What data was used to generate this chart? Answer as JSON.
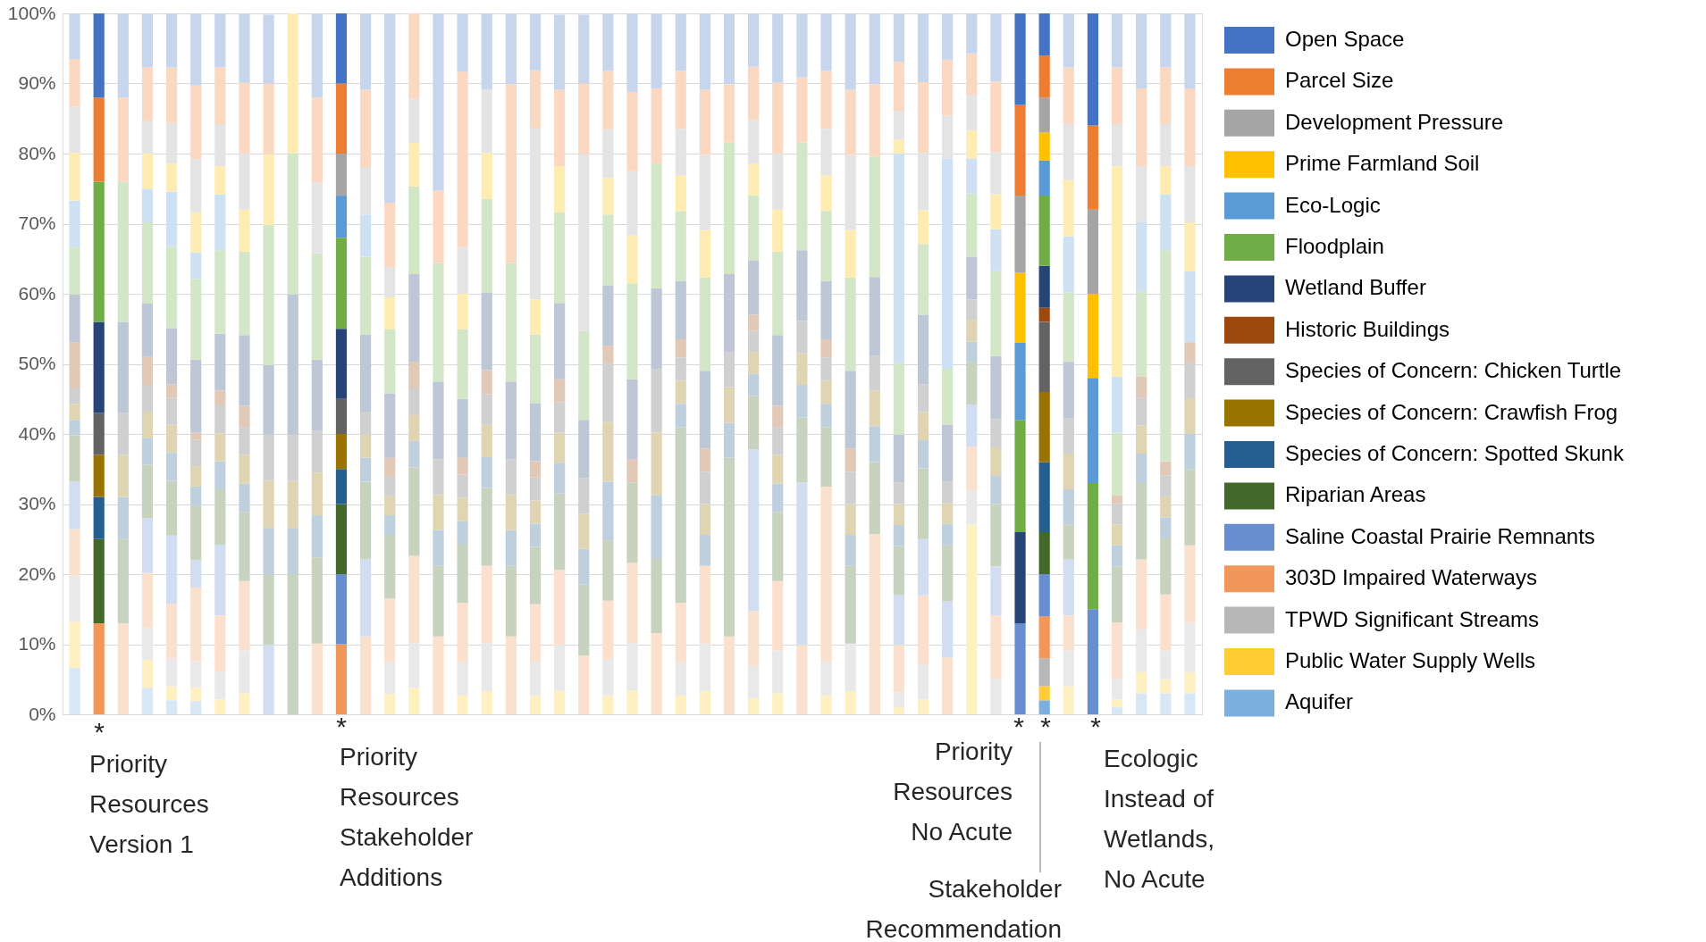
{
  "chart_data": {
    "type": "bar",
    "stacked": true,
    "legend": "right",
    "grid": "y",
    "categories": [
      null,
      null,
      null,
      null,
      null,
      null,
      null,
      null,
      null,
      null,
      null,
      null,
      null,
      null,
      null,
      null,
      null,
      null,
      null,
      null,
      null,
      null,
      null,
      null,
      null,
      null,
      null,
      null,
      null,
      null,
      null,
      null,
      null,
      null,
      null,
      null,
      null,
      null,
      null,
      null,
      null,
      null,
      null,
      null,
      null,
      null,
      null
    ],
    "ylim": [
      0,
      100
    ],
    "yticks": [
      {
        "value": 0,
        "label": "0%"
      },
      {
        "value": 10,
        "label": "10%"
      },
      {
        "value": 20,
        "label": "20%"
      },
      {
        "value": 30,
        "label": "30%"
      },
      {
        "value": 40,
        "label": "40%"
      },
      {
        "value": 50,
        "label": "50%"
      },
      {
        "value": 60,
        "label": "60%"
      },
      {
        "value": 70,
        "label": "70%"
      },
      {
        "value": 80,
        "label": "80%"
      },
      {
        "value": 90,
        "label": "90%"
      },
      {
        "value": 100,
        "label": "100%"
      }
    ],
    "annotations": [
      "*",
      "Priority Resources Version 1",
      "*",
      "Priority Resources Stakeholder Additions",
      "*",
      "Priority Resources No Acute",
      "*",
      "Stakeholder Recommendation",
      "*",
      "Ecologic Instead of Wetlands, No Acute"
    ],
    "series": [
      {
        "name": "Aquifer",
        "color": "#7cafdd",
        "values": [
          6.6,
          0,
          0,
          3.8,
          2,
          1.9,
          0,
          0,
          0,
          0,
          0,
          0,
          0,
          0,
          0,
          0,
          0,
          0,
          0,
          0,
          0,
          0,
          0,
          0,
          0,
          0,
          0,
          0,
          0,
          0,
          0,
          0,
          0,
          0,
          0,
          0,
          0,
          0,
          0,
          0,
          2,
          0,
          0,
          1,
          3,
          3,
          3
        ],
        "colors": [
          "#d8e7f5",
          "#7cafdd",
          "#d8e7f5",
          "#d8e7f5",
          "#d8e7f5",
          "#d8e7f5",
          "#d8e7f5",
          "#d8e7f5",
          "#d8e7f5",
          "#d8e7f5",
          "#d8e7f5",
          "#7cafdd",
          "#d8e7f5",
          "#d8e7f5",
          "#d8e7f5",
          "#d8e7f5",
          "#d8e7f5",
          "#d8e7f5",
          "#d8e7f5",
          "#d8e7f5",
          "#d8e7f5",
          "#d8e7f5",
          "#d8e7f5",
          "#d8e7f5",
          "#d8e7f5",
          "#d8e7f5",
          "#d8e7f5",
          "#d8e7f5",
          "#d8e7f5",
          "#d8e7f5",
          "#d8e7f5",
          "#d8e7f5",
          "#d8e7f5",
          "#d8e7f5",
          "#d8e7f5",
          "#d8e7f5",
          "#d8e7f5",
          "#d8e7f5",
          "#d8e7f5",
          "#7cafdd",
          "#7cafdd",
          "#d8e7f5",
          "#7cafdd",
          "#d8e7f5",
          "#d8e7f5",
          "#d8e7f5",
          "#d8e7f5"
        ]
      },
      {
        "name": "Public Water Supply Wells",
        "color": "#ffcd33",
        "values": [
          6.6,
          0,
          0,
          4,
          2,
          1.9,
          2.1,
          3,
          0,
          0,
          0,
          0,
          0,
          2.9,
          3.8,
          0,
          2.7,
          3.3,
          0,
          2.7,
          3.3,
          0,
          2.7,
          3.4,
          0,
          2.7,
          3.3,
          0,
          2.3,
          3,
          0,
          2.7,
          3.3,
          0,
          1,
          2.1,
          0,
          27.1,
          0,
          0,
          2,
          4,
          0,
          1.1,
          3,
          2,
          3
        ],
        "colors": [
          "#fff0c2",
          "#ffcd33",
          "#fff0c2",
          "#fff0c2",
          "#fff0c2",
          "#fff0c2",
          "#fff0c2",
          "#fff0c2",
          "#fff0c2",
          "#fff0c2",
          "#fff0c2",
          "#ffcd33",
          "#fff0c2",
          "#fff0c2",
          "#fff0c2",
          "#fff0c2",
          "#fff0c2",
          "#fff0c2",
          "#fff0c2",
          "#fff0c2",
          "#fff0c2",
          "#fff0c2",
          "#fff0c2",
          "#fff0c2",
          "#fff0c2",
          "#fff0c2",
          "#fff0c2",
          "#fff0c2",
          "#fff0c2",
          "#fff0c2",
          "#fff0c2",
          "#fff0c2",
          "#fff0c2",
          "#fff0c2",
          "#fff0c2",
          "#fff0c2",
          "#fff0c2",
          "#fff0c2",
          "#fff0c2",
          "#ffcd33",
          "#ffcd33",
          "#fff0c2",
          "#ffcd33",
          "#fff0c2",
          "#fff0c2",
          "#fff0c2",
          "#fff0c2"
        ]
      },
      {
        "name": "TPWD Significant Streams",
        "color": "#b7b7b7",
        "values": [
          6.6,
          0,
          0,
          4.6,
          4,
          3.8,
          4,
          6.1,
          0,
          0,
          0,
          0,
          0,
          4.6,
          6.3,
          0,
          4.8,
          6.8,
          0,
          4.8,
          6.6,
          0,
          5.1,
          6.8,
          0,
          4.8,
          6.8,
          0,
          4.6,
          6.1,
          0,
          4.8,
          6.8,
          0,
          2.1,
          5,
          0,
          5,
          5.1,
          0,
          4,
          5.1,
          0,
          3,
          6.1,
          4.1,
          7.1
        ],
        "colors": [
          "#e9e9e9",
          "#b7b7b7",
          "#e9e9e9",
          "#e9e9e9",
          "#e9e9e9",
          "#e9e9e9",
          "#e9e9e9",
          "#e9e9e9",
          "#e9e9e9",
          "#e9e9e9",
          "#e9e9e9",
          "#b7b7b7",
          "#e9e9e9",
          "#e9e9e9",
          "#e9e9e9",
          "#e9e9e9",
          "#e9e9e9",
          "#e9e9e9",
          "#e9e9e9",
          "#e9e9e9",
          "#e9e9e9",
          "#e9e9e9",
          "#e9e9e9",
          "#e9e9e9",
          "#e9e9e9",
          "#e9e9e9",
          "#e9e9e9",
          "#e9e9e9",
          "#e9e9e9",
          "#e9e9e9",
          "#e9e9e9",
          "#e9e9e9",
          "#e9e9e9",
          "#e9e9e9",
          "#e9e9e9",
          "#e9e9e9",
          "#e9e9e9",
          "#e9e9e9",
          "#e9e9e9",
          "#b7b7b7",
          "#b7b7b7",
          "#e9e9e9",
          "#b7b7b7",
          "#e9e9e9",
          "#e9e9e9",
          "#e9e9e9",
          "#e9e9e9"
        ]
      },
      {
        "name": "303D Impaired Waterways",
        "color": "#f1975a",
        "values": [
          6.6,
          13,
          13,
          7.8,
          7.8,
          10.5,
          8,
          9.9,
          0,
          0,
          10.1,
          10,
          11.1,
          9,
          12.5,
          11.1,
          8.4,
          11.1,
          11.1,
          8.2,
          10.7,
          8.4,
          8.4,
          11.4,
          11.6,
          8.4,
          11.1,
          11.1,
          7.8,
          9.9,
          9.9,
          25,
          0,
          25.7,
          6.8,
          9.9,
          8.1,
          6.1,
          9,
          0,
          6,
          5,
          0,
          8,
          10,
          8,
          11
        ],
        "colors": [
          "#fbe0ce",
          "#f1975a",
          "#fbe0ce",
          "#fbe0ce",
          "#fbe0ce",
          "#fbe0ce",
          "#fbe0ce",
          "#fbe0ce",
          "#fbe0ce",
          "#fbe0ce",
          "#fbe0ce",
          "#f1975a",
          "#fbe0ce",
          "#fbe0ce",
          "#fbe0ce",
          "#fbe0ce",
          "#fbe0ce",
          "#fbe0ce",
          "#fbe0ce",
          "#fbe0ce",
          "#fbe0ce",
          "#fbe0ce",
          "#fbe0ce",
          "#fbe0ce",
          "#fbe0ce",
          "#fbe0ce",
          "#fbe0ce",
          "#fbe0ce",
          "#fbe0ce",
          "#fbe0ce",
          "#fbe0ce",
          "#fbe0ce",
          "#fbe0ce",
          "#fbe0ce",
          "#fbe0ce",
          "#fbe0ce",
          "#fbe0ce",
          "#fbe0ce",
          "#fbe0ce",
          "#f1975a",
          "#f1975a",
          "#fbe0ce",
          "#f1975a",
          "#fbe0ce",
          "#fbe0ce",
          "#fbe0ce",
          "#fbe0ce"
        ]
      },
      {
        "name": "Saline Coastal Prairie Remnants",
        "color": "#698ed0",
        "values": [
          6.8,
          0,
          0,
          7.8,
          9.7,
          3.9,
          10.1,
          0,
          9.9,
          0,
          0,
          10,
          11,
          0,
          0,
          0,
          0,
          0,
          0,
          0,
          0,
          0,
          0,
          0,
          0,
          0,
          0,
          0,
          23.1,
          0,
          23.2,
          0,
          0,
          0,
          7.1,
          8,
          8,
          6,
          7,
          13,
          6,
          8,
          15,
          0,
          0,
          0,
          0
        ],
        "colors": [
          "#d2ddf1",
          "#698ed0",
          "#d2ddf1",
          "#d2ddf1",
          "#d2ddf1",
          "#d2ddf1",
          "#d2ddf1",
          "#d2ddf1",
          "#d2ddf1",
          "#d2ddf1",
          "#d2ddf1",
          "#698ed0",
          "#d2ddf1",
          "#d2ddf1",
          "#d2ddf1",
          "#d2ddf1",
          "#d2ddf1",
          "#d2ddf1",
          "#d2ddf1",
          "#d2ddf1",
          "#d2ddf1",
          "#d2ddf1",
          "#d2ddf1",
          "#d2ddf1",
          "#d2ddf1",
          "#d2ddf1",
          "#d2ddf1",
          "#d2ddf1",
          "#d2ddf1",
          "#d2ddf1",
          "#d2ddf1",
          "#d2ddf1",
          "#d2ddf1",
          "#d2ddf1",
          "#d2ddf1",
          "#d2ddf1",
          "#d2ddf1",
          "#d2ddf1",
          "#d2ddf1",
          "#698ed0",
          "#698ed0",
          "#d2ddf1",
          "#698ed0",
          "#d2ddf1",
          "#d2ddf1",
          "#d2ddf1",
          "#d2ddf1"
        ]
      },
      {
        "name": "Riparian Areas",
        "color": "#43682b",
        "values": [
          6.6,
          12,
          12,
          7.6,
          7.8,
          7.7,
          7.9,
          9.9,
          10.1,
          20,
          12.3,
          10,
          11.1,
          9.1,
          12.6,
          10.1,
          8.3,
          11.1,
          10.1,
          8.2,
          10.9,
          10.1,
          8.6,
          11.5,
          10.7,
          25.1,
          0,
          25.5,
          7.6,
          9.9,
          9.3,
          8.5,
          11.1,
          10.3,
          7,
          10.1,
          8,
          6.1,
          8.9,
          0,
          6,
          5,
          0,
          8,
          10.9,
          8,
          10.9
        ],
        "colors": [
          "#c7d2bf",
          "#43682b",
          "#c7d2bf",
          "#c7d2bf",
          "#c7d2bf",
          "#c7d2bf",
          "#c7d2bf",
          "#c7d2bf",
          "#c7d2bf",
          "#c7d2bf",
          "#c7d2bf",
          "#43682b",
          "#c7d2bf",
          "#c7d2bf",
          "#c7d2bf",
          "#c7d2bf",
          "#c7d2bf",
          "#c7d2bf",
          "#c7d2bf",
          "#c7d2bf",
          "#c7d2bf",
          "#c7d2bf",
          "#c7d2bf",
          "#c7d2bf",
          "#c7d2bf",
          "#c7d2bf",
          "#c7d2bf",
          "#c7d2bf",
          "#c7d2bf",
          "#c7d2bf",
          "#c7d2bf",
          "#c7d2bf",
          "#c7d2bf",
          "#c7d2bf",
          "#c7d2bf",
          "#c7d2bf",
          "#c7d2bf",
          "#c7d2bf",
          "#c7d2bf",
          "#43682b",
          "#43682b",
          "#c7d2bf",
          "#43682b",
          "#c7d2bf",
          "#c7d2bf",
          "#c7d2bf",
          "#c7d2bf"
        ]
      },
      {
        "name": "Species of Concern: Spotted Skunk",
        "color": "#255e91",
        "values": [
          2.2,
          6,
          6,
          3.8,
          4,
          2.8,
          4,
          4,
          6.6,
          6.6,
          6,
          5,
          3.4,
          2.8,
          3.8,
          5.1,
          3.4,
          4.4,
          5.1,
          3.3,
          4.4,
          5.1,
          8.4,
          0,
          9,
          3.3,
          4.4,
          5,
          3.2,
          4,
          4.6,
          3.3,
          4.4,
          5.1,
          3,
          4,
          3.1,
          2.9,
          4,
          0,
          10,
          5,
          0,
          3,
          4.2,
          3,
          5
        ],
        "colors": [
          "#becfde",
          "#255e91",
          "#becfde",
          "#becfde",
          "#becfde",
          "#becfde",
          "#becfde",
          "#becfde",
          "#becfde",
          "#becfde",
          "#becfde",
          "#255e91",
          "#becfde",
          "#becfde",
          "#becfde",
          "#becfde",
          "#becfde",
          "#becfde",
          "#becfde",
          "#becfde",
          "#becfde",
          "#becfde",
          "#becfde",
          "#becfde",
          "#becfde",
          "#becfde",
          "#becfde",
          "#becfde",
          "#becfde",
          "#becfde",
          "#becfde",
          "#becfde",
          "#becfde",
          "#becfde",
          "#becfde",
          "#becfde",
          "#becfde",
          "#becfde",
          "#becfde",
          "#255e91",
          "#255e91",
          "#becfde",
          "#255e91",
          "#becfde",
          "#becfde",
          "#becfde",
          "#becfde"
        ]
      },
      {
        "name": "Species of Concern: Crawfish Frog",
        "color": "#997300",
        "values": [
          2.3,
          6,
          6,
          3.8,
          4,
          2.9,
          4,
          4.1,
          6.7,
          6.7,
          6.1,
          5,
          3.3,
          2.7,
          3.7,
          5,
          3.3,
          4.6,
          5,
          3.3,
          4.3,
          5,
          8.5,
          0,
          8.9,
          3.3,
          4.4,
          5.1,
          3.1,
          4.1,
          4.5,
          3.3,
          4.4,
          5.1,
          3,
          4,
          2.9,
          3,
          4.1,
          0,
          10,
          5.1,
          0,
          3,
          4,
          3,
          5.1
        ],
        "colors": [
          "#e0d5b2",
          "#997300",
          "#e0d5b2",
          "#e0d5b2",
          "#e0d5b2",
          "#e0d5b2",
          "#e0d5b2",
          "#e0d5b2",
          "#e0d5b2",
          "#e0d5b2",
          "#e0d5b2",
          "#997300",
          "#e0d5b2",
          "#e0d5b2",
          "#e0d5b2",
          "#e0d5b2",
          "#e0d5b2",
          "#e0d5b2",
          "#e0d5b2",
          "#e0d5b2",
          "#e0d5b2",
          "#e0d5b2",
          "#e0d5b2",
          "#e0d5b2",
          "#e0d5b2",
          "#e0d5b2",
          "#e0d5b2",
          "#e0d5b2",
          "#e0d5b2",
          "#e0d5b2",
          "#e0d5b2",
          "#e0d5b2",
          "#e0d5b2",
          "#e0d5b2",
          "#e0d5b2",
          "#e0d5b2",
          "#e0d5b2",
          "#e0d5b2",
          "#e0d5b2",
          "#997300",
          "#997300",
          "#e0d5b2",
          "#997300",
          "#e0d5b2",
          "#e0d5b2",
          "#e0d5b2",
          "#e0d5b2"
        ]
      },
      {
        "name": "Species of Concern: Chicken Turtle",
        "color": "#636363",
        "values": [
          2.2,
          6,
          6,
          3.8,
          3.9,
          3.8,
          4.1,
          4,
          6.6,
          6.6,
          6,
          5,
          3.3,
          2.8,
          3.8,
          5.1,
          3.3,
          4.4,
          5.1,
          3.3,
          4.3,
          5.1,
          8.4,
          0,
          9,
          3.3,
          4.6,
          5,
          3,
          4,
          4.6,
          3.3,
          4.6,
          5,
          3.1,
          4,
          3.1,
          3,
          4,
          0,
          10,
          5,
          0,
          3,
          4,
          3,
          5.1
        ],
        "colors": [
          "#d0d0d0",
          "#636363",
          "#d0d0d0",
          "#d0d0d0",
          "#d0d0d0",
          "#d0d0d0",
          "#d0d0d0",
          "#d0d0d0",
          "#d0d0d0",
          "#d0d0d0",
          "#d0d0d0",
          "#636363",
          "#d0d0d0",
          "#d0d0d0",
          "#d0d0d0",
          "#d0d0d0",
          "#d0d0d0",
          "#d0d0d0",
          "#d0d0d0",
          "#d0d0d0",
          "#d0d0d0",
          "#d0d0d0",
          "#d0d0d0",
          "#d0d0d0",
          "#d0d0d0",
          "#d0d0d0",
          "#d0d0d0",
          "#d0d0d0",
          "#d0d0d0",
          "#d0d0d0",
          "#d0d0d0",
          "#d0d0d0",
          "#d0d0d0",
          "#d0d0d0",
          "#d0d0d0",
          "#d0d0d0",
          "#d0d0d0",
          "#d0d0d0",
          "#d0d0d0",
          "#636363",
          "#636363",
          "#d0d0d0",
          "#636363",
          "#d0d0d0",
          "#d0d0d0",
          "#d0d0d0",
          "#d0d0d0"
        ]
      },
      {
        "name": "Historic Buildings",
        "color": "#9e480e",
        "values": [
          6.6,
          0,
          0,
          4,
          1.9,
          1,
          2,
          3,
          0,
          0,
          0,
          0,
          0,
          2.7,
          3.8,
          0,
          2.4,
          3.4,
          0,
          2.3,
          3.3,
          0,
          2.5,
          3.3,
          0,
          2.6,
          3.3,
          0,
          2.3,
          3,
          0,
          2.6,
          3.3,
          0,
          0,
          0,
          0,
          0,
          0,
          0,
          2,
          0,
          0,
          1.1,
          3,
          2,
          2.9
        ],
        "colors": [
          "#e2c8b7",
          "#9e480e",
          "#e2c8b7",
          "#e2c8b7",
          "#e2c8b7",
          "#e2c8b7",
          "#e2c8b7",
          "#e2c8b7",
          "#e2c8b7",
          "#e2c8b7",
          "#e2c8b7",
          "#9e480e",
          "#e2c8b7",
          "#e2c8b7",
          "#e2c8b7",
          "#e2c8b7",
          "#e2c8b7",
          "#e2c8b7",
          "#e2c8b7",
          "#e2c8b7",
          "#e2c8b7",
          "#e2c8b7",
          "#e2c8b7",
          "#e2c8b7",
          "#e2c8b7",
          "#e2c8b7",
          "#e2c8b7",
          "#e2c8b7",
          "#e2c8b7",
          "#e2c8b7",
          "#e2c8b7",
          "#e2c8b7",
          "#e2c8b7",
          "#e2c8b7",
          "#e2c8b7",
          "#e2c8b7",
          "#e2c8b7",
          "#e2c8b7",
          "#e2c8b7",
          "#9e480e",
          "#9e480e",
          "#e2c8b7",
          "#9e480e",
          "#e2c8b7",
          "#e2c8b7",
          "#e2c8b7",
          "#e2c8b7"
        ]
      },
      {
        "name": "Wetland Buffer",
        "color": "#264478",
        "values": [
          6.8,
          13,
          13,
          7.6,
          8,
          10.4,
          8.1,
          10.1,
          9.9,
          20,
          10.1,
          10,
          11,
          9.2,
          12.5,
          11.1,
          8.4,
          11.1,
          11.1,
          8.3,
          10.9,
          8.3,
          8.6,
          11.4,
          11.6,
          8.3,
          11.1,
          11.1,
          7.8,
          10.1,
          10.1,
          8.3,
          11.1,
          11.2,
          6.8,
          9.9,
          8.1,
          6.1,
          9,
          13,
          6,
          8.1,
          0,
          0,
          0,
          0,
          0
        ],
        "colors": [
          "#bec7d6",
          "#264478",
          "#bec7d6",
          "#bec7d6",
          "#bec7d6",
          "#bec7d6",
          "#bec7d6",
          "#bec7d6",
          "#bec7d6",
          "#bec7d6",
          "#bec7d6",
          "#264478",
          "#bec7d6",
          "#bec7d6",
          "#bec7d6",
          "#bec7d6",
          "#bec7d6",
          "#bec7d6",
          "#bec7d6",
          "#bec7d6",
          "#bec7d6",
          "#bec7d6",
          "#bec7d6",
          "#bec7d6",
          "#bec7d6",
          "#bec7d6",
          "#bec7d6",
          "#bec7d6",
          "#bec7d6",
          "#bec7d6",
          "#bec7d6",
          "#bec7d6",
          "#bec7d6",
          "#bec7d6",
          "#bec7d6",
          "#bec7d6",
          "#bec7d6",
          "#bec7d6",
          "#bec7d6",
          "#264478",
          "#264478",
          "#bec7d6",
          "#264478",
          "#bec7d6",
          "#bec7d6",
          "#bec7d6",
          "#bec7d6"
        ]
      },
      {
        "name": "Floodplain",
        "color": "#70ad47",
        "values": [
          6.7,
          20,
          20,
          11.6,
          11.7,
          11.5,
          11.9,
          11.9,
          20,
          20.2,
          15.2,
          13,
          11.1,
          9.1,
          12.5,
          16.9,
          9.9,
          13.3,
          16.9,
          9.8,
          12.9,
          12.7,
          10.1,
          13.7,
          17.8,
          10,
          13.3,
          18.8,
          9.2,
          11.9,
          15.4,
          10,
          13.3,
          17.2,
          10.2,
          10.1,
          8,
          9,
          12.1,
          16,
          10,
          9.9,
          18,
          9,
          12.1,
          30.1,
          0
        ],
        "colors": [
          "#d4e6c8",
          "#70ad47",
          "#d4e6c8",
          "#d4e6c8",
          "#d4e6c8",
          "#d4e6c8",
          "#d4e6c8",
          "#d4e6c8",
          "#d4e6c8",
          "#d4e6c8",
          "#d4e6c8",
          "#70ad47",
          "#d4e6c8",
          "#d4e6c8",
          "#d4e6c8",
          "#d4e6c8",
          "#d4e6c8",
          "#d4e6c8",
          "#d4e6c8",
          "#d4e6c8",
          "#d4e6c8",
          "#d4e6c8",
          "#d4e6c8",
          "#d4e6c8",
          "#d4e6c8",
          "#d4e6c8",
          "#d4e6c8",
          "#d4e6c8",
          "#d4e6c8",
          "#d4e6c8",
          "#d4e6c8",
          "#d4e6c8",
          "#d4e6c8",
          "#d4e6c8",
          "#d4e6c8",
          "#d4e6c8",
          "#d4e6c8",
          "#d4e6c8",
          "#d4e6c8",
          "#70ad47",
          "#70ad47",
          "#d4e6c8",
          "#70ad47",
          "#d4e6c8",
          "#d4e6c8",
          "#d4e6c8",
          "#d4e6c8"
        ]
      },
      {
        "name": "Eco-Logic",
        "color": "#5b9bd5",
        "values": [
          6.7,
          0,
          0,
          4.8,
          7.8,
          3.8,
          8,
          0,
          0,
          0,
          0,
          6,
          6,
          0,
          0,
          0,
          0,
          0,
          0,
          0,
          0,
          0,
          0,
          0,
          0,
          0,
          0,
          0,
          0,
          0,
          0,
          0,
          0,
          0,
          29.9,
          0,
          30,
          5,
          6,
          11,
          5,
          8,
          15,
          8,
          9.9,
          8,
          10.1
        ],
        "colors": [
          "#cee1f2",
          "#5b9bd5",
          "#cee1f2",
          "#cee1f2",
          "#cee1f2",
          "#cee1f2",
          "#cee1f2",
          "#cee1f2",
          "#cee1f2",
          "#cee1f2",
          "#cee1f2",
          "#5b9bd5",
          "#cee1f2",
          "#cee1f2",
          "#cee1f2",
          "#cee1f2",
          "#cee1f2",
          "#cee1f2",
          "#cee1f2",
          "#cee1f2",
          "#cee1f2",
          "#cee1f2",
          "#cee1f2",
          "#cee1f2",
          "#cee1f2",
          "#cee1f2",
          "#cee1f2",
          "#cee1f2",
          "#cee1f2",
          "#cee1f2",
          "#cee1f2",
          "#cee1f2",
          "#cee1f2",
          "#cee1f2",
          "#cee1f2",
          "#cee1f2",
          "#cee1f2",
          "#cee1f2",
          "#cee1f2",
          "#5b9bd5",
          "#5b9bd5",
          "#cee1f2",
          "#5b9bd5",
          "#cee1f2",
          "#cee1f2",
          "#cee1f2",
          "#cee1f2"
        ]
      },
      {
        "name": "Prime Farmland Soil",
        "color": "#ffc000",
        "values": [
          6.8,
          0,
          0,
          5,
          4,
          5.7,
          4,
          6,
          10.1,
          19.9,
          0,
          0,
          0,
          4.6,
          6.2,
          0,
          5.1,
          6.6,
          0,
          5,
          6.6,
          0,
          5.2,
          6.8,
          0,
          5.1,
          6.8,
          0,
          4.6,
          6,
          0,
          5.1,
          6.8,
          0,
          2,
          4.8,
          0,
          4,
          5,
          10,
          4,
          8,
          12,
          30,
          0,
          4,
          7
        ],
        "colors": [
          "#ffecb2",
          "#ffc000",
          "#ffecb2",
          "#ffecb2",
          "#ffecb2",
          "#ffecb2",
          "#ffecb2",
          "#ffecb2",
          "#ffecb2",
          "#ffecb2",
          "#ffecb2",
          "#ffc000",
          "#ffecb2",
          "#ffecb2",
          "#ffecb2",
          "#ffecb2",
          "#ffecb2",
          "#ffecb2",
          "#ffecb2",
          "#ffecb2",
          "#ffecb2",
          "#ffecb2",
          "#ffecb2",
          "#ffecb2",
          "#ffecb2",
          "#ffecb2",
          "#ffecb2",
          "#ffecb2",
          "#ffecb2",
          "#ffecb2",
          "#ffecb2",
          "#ffecb2",
          "#ffecb2",
          "#ffecb2",
          "#ffecb2",
          "#ffecb2",
          "#ffecb2",
          "#ffecb2",
          "#ffecb2",
          "#ffc000",
          "#ffc000",
          "#ffecb2",
          "#ffc000",
          "#ffecb2",
          "#ffecb2",
          "#ffecb2",
          "#ffecb2"
        ]
      },
      {
        "name": "Development Pressure",
        "color": "#a5a5a5",
        "values": [
          6.6,
          0,
          0,
          4.7,
          5.8,
          7.6,
          6,
          8,
          0,
          0,
          10.1,
          6,
          6.8,
          4.3,
          6.3,
          0,
          6.7,
          9,
          0,
          24.5,
          0,
          25.2,
          6.9,
          9.2,
          0,
          6.6,
          10.7,
          0,
          6.2,
          8,
          0,
          6.6,
          10.7,
          0,
          4.1,
          8.2,
          6.1,
          5,
          6,
          11,
          5,
          8,
          12,
          6,
          8,
          6,
          8
        ],
        "colors": [
          "#e4e4e4",
          "#a5a5a5",
          "#e4e4e4",
          "#e4e4e4",
          "#e4e4e4",
          "#e4e4e4",
          "#e4e4e4",
          "#e4e4e4",
          "#e4e4e4",
          "#e4e4e4",
          "#e4e4e4",
          "#a5a5a5",
          "#e4e4e4",
          "#e4e4e4",
          "#e4e4e4",
          "#e4e4e4",
          "#e4e4e4",
          "#e4e4e4",
          "#e4e4e4",
          "#e4e4e4",
          "#e4e4e4",
          "#e4e4e4",
          "#e4e4e4",
          "#e4e4e4",
          "#e4e4e4",
          "#e4e4e4",
          "#e4e4e4",
          "#e4e4e4",
          "#e4e4e4",
          "#e4e4e4",
          "#e4e4e4",
          "#e4e4e4",
          "#e4e4e4",
          "#e4e4e4",
          "#e4e4e4",
          "#e4e4e4",
          "#e4e4e4",
          "#e4e4e4",
          "#e4e4e4",
          "#a5a5a5",
          "#a5a5a5",
          "#e4e4e4",
          "#a5a5a5",
          "#e4e4e4",
          "#e4e4e4",
          "#e4e4e4",
          "#e4e4e4"
        ]
      },
      {
        "name": "Parcel Size",
        "color": "#ed7d31",
        "values": [
          6.8,
          12,
          12,
          7.6,
          7.9,
          10.5,
          8.1,
          10.1,
          10.1,
          0,
          12.1,
          10,
          11,
          9.2,
          12.2,
          10.3,
          25,
          0,
          25.5,
          8.2,
          10.9,
          10.1,
          8.4,
          11.3,
          10.7,
          8.3,
          9.3,
          8.3,
          7.6,
          10.1,
          9.3,
          8.3,
          9.3,
          10.3,
          7,
          10.1,
          8,
          6,
          10.1,
          13,
          6,
          8.1,
          12,
          8.1,
          11.1,
          8.1,
          11.1
        ],
        "colors": [
          "#fad8c1",
          "#ed7d31",
          "#fad8c1",
          "#fad8c1",
          "#fad8c1",
          "#fad8c1",
          "#fad8c1",
          "#fad8c1",
          "#fad8c1",
          "#fad8c1",
          "#fad8c1",
          "#ed7d31",
          "#fad8c1",
          "#fad8c1",
          "#fad8c1",
          "#fad8c1",
          "#fad8c1",
          "#fad8c1",
          "#fad8c1",
          "#fad8c1",
          "#fad8c1",
          "#fad8c1",
          "#fad8c1",
          "#fad8c1",
          "#fad8c1",
          "#fad8c1",
          "#fad8c1",
          "#fad8c1",
          "#fad8c1",
          "#fad8c1",
          "#fad8c1",
          "#fad8c1",
          "#fad8c1",
          "#fad8c1",
          "#fad8c1",
          "#fad8c1",
          "#fad8c1",
          "#fad8c1",
          "#fad8c1",
          "#ed7d31",
          "#ed7d31",
          "#fad8c1",
          "#ed7d31",
          "#fad8c1",
          "#fad8c1",
          "#fad8c1",
          "#fad8c1"
        ]
      },
      {
        "name": "Open Space",
        "color": "#4472c4",
        "values": [
          6.5,
          12,
          12,
          7.6,
          7.7,
          10.3,
          7.7,
          9.8,
          9.8,
          0,
          11.9,
          10,
          10.9,
          27,
          0,
          25.3,
          8.2,
          10.9,
          10,
          8,
          10.7,
          9.8,
          8.2,
          11.2,
          10.6,
          8.2,
          10.9,
          10,
          7.6,
          9.8,
          9,
          8.2,
          10.9,
          10,
          6.8,
          9.8,
          6.6,
          5.7,
          9.7,
          13,
          6,
          7.7,
          16,
          7.7,
          10.7,
          7.7,
          10.7
        ],
        "colors": [
          "#c7d5ed",
          "#4472c4",
          "#c7d5ed",
          "#c7d5ed",
          "#c7d5ed",
          "#c7d5ed",
          "#c7d5ed",
          "#c7d5ed",
          "#c7d5ed",
          "#c7d5ed",
          "#c7d5ed",
          "#4472c4",
          "#c7d5ed",
          "#c7d5ed",
          "#c7d5ed",
          "#c7d5ed",
          "#c7d5ed",
          "#c7d5ed",
          "#c7d5ed",
          "#c7d5ed",
          "#c7d5ed",
          "#c7d5ed",
          "#c7d5ed",
          "#c7d5ed",
          "#c7d5ed",
          "#c7d5ed",
          "#c7d5ed",
          "#c7d5ed",
          "#c7d5ed",
          "#c7d5ed",
          "#c7d5ed",
          "#c7d5ed",
          "#c7d5ed",
          "#c7d5ed",
          "#c7d5ed",
          "#c7d5ed",
          "#c7d5ed",
          "#c7d5ed",
          "#c7d5ed",
          "#4472c4",
          "#4472c4",
          "#c7d5ed",
          "#4472c4",
          "#c7d5ed",
          "#c7d5ed",
          "#c7d5ed",
          "#c7d5ed"
        ]
      }
    ]
  }
}
